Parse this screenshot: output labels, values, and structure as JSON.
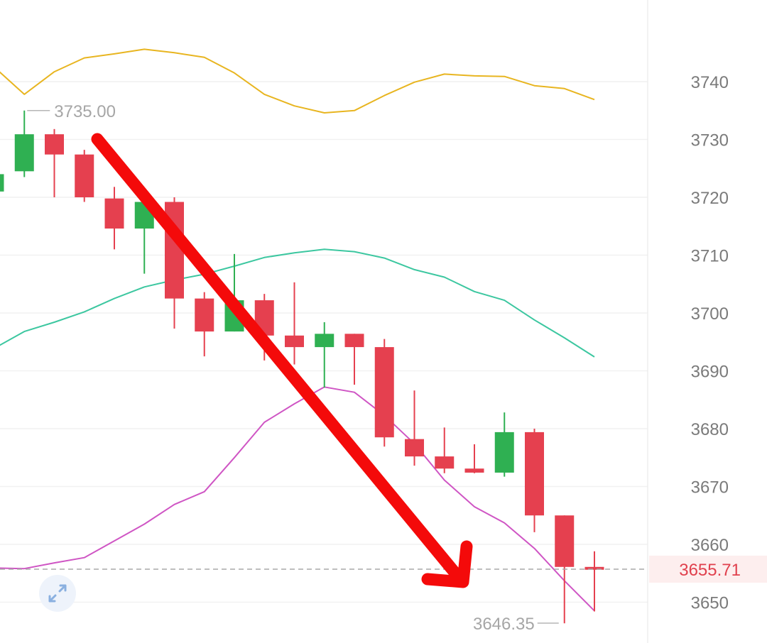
{
  "chart_data": {
    "type": "candlestick",
    "y_axis": {
      "ticks": [
        3650,
        3660,
        3670,
        3680,
        3690,
        3700,
        3710,
        3720,
        3730,
        3740
      ],
      "tick_labels": [
        "3650",
        "3660",
        "3670",
        "3680",
        "3690",
        "3700",
        "3710",
        "3720",
        "3730",
        "3740"
      ],
      "range": [
        3643,
        3755
      ]
    },
    "grid": "horizontal",
    "candles": [
      {
        "o": 3721.0,
        "h": 3724.0,
        "l": 3719.0,
        "c": 3724.0
      },
      {
        "o": 3724.5,
        "h": 3735.0,
        "l": 3723.5,
        "c": 3730.9
      },
      {
        "o": 3730.9,
        "h": 3731.8,
        "l": 3720.0,
        "c": 3727.4
      },
      {
        "o": 3727.4,
        "h": 3728.2,
        "l": 3719.2,
        "c": 3720.0
      },
      {
        "o": 3719.8,
        "h": 3721.8,
        "l": 3711.0,
        "c": 3714.6
      },
      {
        "o": 3714.6,
        "h": 3719.7,
        "l": 3706.8,
        "c": 3719.2
      },
      {
        "o": 3719.2,
        "h": 3720.0,
        "l": 3697.3,
        "c": 3702.5
      },
      {
        "o": 3702.5,
        "h": 3703.6,
        "l": 3692.5,
        "c": 3696.8
      },
      {
        "o": 3696.8,
        "h": 3710.2,
        "l": 3696.8,
        "c": 3702.2
      },
      {
        "o": 3702.2,
        "h": 3703.3,
        "l": 3691.8,
        "c": 3696.1
      },
      {
        "o": 3696.1,
        "h": 3705.3,
        "l": 3691.1,
        "c": 3694.1
      },
      {
        "o": 3694.1,
        "h": 3698.4,
        "l": 3687.1,
        "c": 3696.4
      },
      {
        "o": 3696.4,
        "h": 3696.4,
        "l": 3687.6,
        "c": 3694.1
      },
      {
        "o": 3694.1,
        "h": 3695.5,
        "l": 3676.9,
        "c": 3678.5
      },
      {
        "o": 3678.2,
        "h": 3686.6,
        "l": 3673.6,
        "c": 3675.2
      },
      {
        "o": 3675.2,
        "h": 3680.2,
        "l": 3672.3,
        "c": 3673.1
      },
      {
        "o": 3673.1,
        "h": 3677.3,
        "l": 3672.3,
        "c": 3672.4
      },
      {
        "o": 3672.4,
        "h": 3682.8,
        "l": 3671.7,
        "c": 3679.4
      },
      {
        "o": 3679.4,
        "h": 3680.0,
        "l": 3662.1,
        "c": 3665.0
      },
      {
        "o": 3665.0,
        "h": 3665.0,
        "l": 3646.35,
        "c": 3656.1
      },
      {
        "o": 3656.1,
        "h": 3658.8,
        "l": 3648.4,
        "c": 3655.71
      }
    ],
    "upper_band": [
      3742.5,
      3737.8,
      3741.7,
      3744.1,
      3744.8,
      3745.6,
      3745.0,
      3744.2,
      3741.5,
      3737.8,
      3735.8,
      3734.6,
      3735.0,
      3737.6,
      3739.9,
      3741.3,
      3741.0,
      3740.9,
      3739.3,
      3738.8,
      3736.9
    ],
    "middle_band": [
      3693.9,
      3696.8,
      3698.4,
      3700.2,
      3702.5,
      3704.5,
      3705.7,
      3706.7,
      3708.1,
      3709.6,
      3710.4,
      3711.0,
      3710.6,
      3709.5,
      3707.5,
      3706.2,
      3703.7,
      3702.2,
      3698.8,
      3695.7,
      3692.4
    ],
    "lower_band": [
      3655.9,
      3655.8,
      3656.8,
      3657.7,
      3660.6,
      3663.5,
      3666.9,
      3669.1,
      3675.0,
      3681.1,
      3684.3,
      3687.2,
      3686.3,
      3682.3,
      3677.4,
      3671.1,
      3666.5,
      3663.7,
      3659.3,
      3653.7,
      3648.5
    ],
    "annotations": {
      "max_label": "3735.00",
      "min_label": "3646.35"
    },
    "last_price": {
      "value": 3655.71,
      "label": "3655.71"
    },
    "colors": {
      "up": "#2fb052",
      "down": "#e5404f",
      "upper_band": "#e8b520",
      "middle_band": "#3cc7a0",
      "lower_band": "#cf55c4",
      "arrow": "#f40a0a",
      "last_price_line": "#a8a8a8"
    }
  },
  "ui": {
    "expand_icon": "expand-icon"
  }
}
